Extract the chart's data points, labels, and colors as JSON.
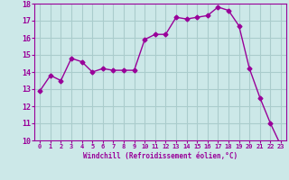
{
  "x": [
    0,
    1,
    2,
    3,
    4,
    5,
    6,
    7,
    8,
    9,
    10,
    11,
    12,
    13,
    14,
    15,
    16,
    17,
    18,
    19,
    20,
    21,
    22,
    23
  ],
  "y": [
    12.9,
    13.8,
    13.5,
    14.8,
    14.6,
    14.0,
    14.2,
    14.1,
    14.1,
    14.1,
    15.9,
    16.2,
    16.2,
    17.2,
    17.1,
    17.2,
    17.3,
    17.8,
    17.6,
    16.7,
    14.2,
    12.5,
    11.0,
    9.7
  ],
  "line_color": "#990099",
  "marker": "D",
  "marker_size": 2.5,
  "bg_color": "#cce8e8",
  "grid_color": "#aacccc",
  "xlabel": "Windchill (Refroidissement éolien,°C)",
  "xlabel_color": "#990099",
  "tick_color": "#990099",
  "ylim": [
    10,
    18
  ],
  "xlim": [
    -0.5,
    23.5
  ],
  "yticks": [
    10,
    11,
    12,
    13,
    14,
    15,
    16,
    17,
    18
  ],
  "xticks": [
    0,
    1,
    2,
    3,
    4,
    5,
    6,
    7,
    8,
    9,
    10,
    11,
    12,
    13,
    14,
    15,
    16,
    17,
    18,
    19,
    20,
    21,
    22,
    23
  ],
  "xtick_labels": [
    "0",
    "1",
    "2",
    "3",
    "4",
    "5",
    "6",
    "7",
    "8",
    "9",
    "10",
    "11",
    "12",
    "13",
    "14",
    "15",
    "16",
    "17",
    "18",
    "19",
    "20",
    "21",
    "22",
    "23"
  ]
}
